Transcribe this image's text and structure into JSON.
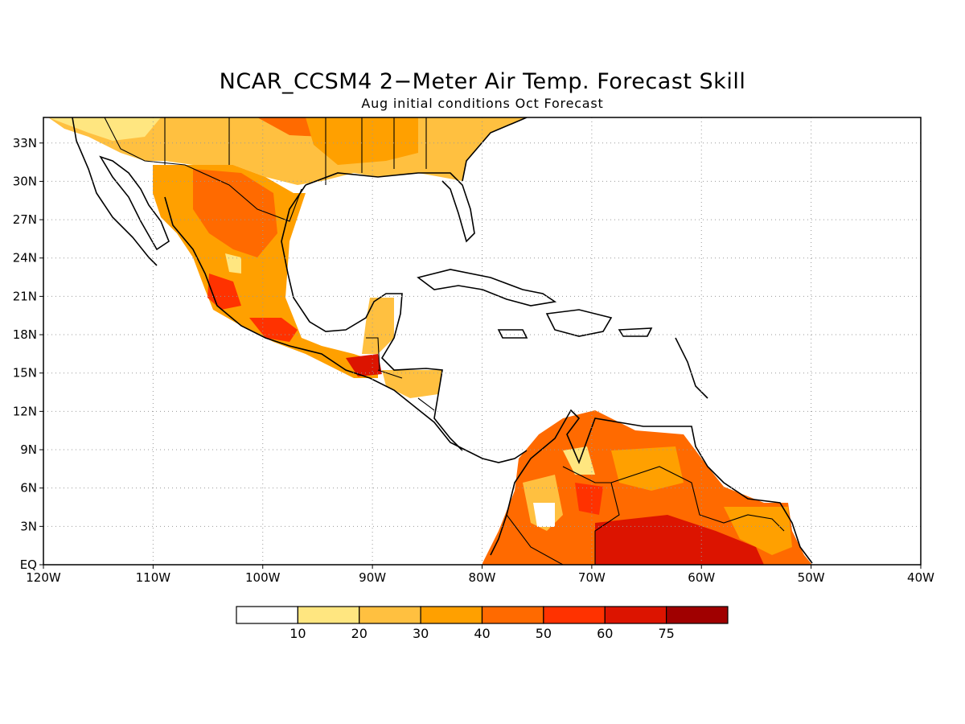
{
  "title": "NCAR_CCSM4 2−Meter Air Temp. Forecast Skill",
  "subtitle": "Aug initial conditions  Oct Forecast",
  "map": {
    "lon_range": [
      -120,
      -40
    ],
    "lat_range": [
      0,
      35
    ],
    "grid": "dotted",
    "x_ticks": [
      {
        "value": -120,
        "label": "120W"
      },
      {
        "value": -110,
        "label": "110W"
      },
      {
        "value": -100,
        "label": "100W"
      },
      {
        "value": -90,
        "label": "90W"
      },
      {
        "value": -80,
        "label": "80W"
      },
      {
        "value": -70,
        "label": "70W"
      },
      {
        "value": -60,
        "label": "60W"
      },
      {
        "value": -50,
        "label": "50W"
      },
      {
        "value": -40,
        "label": "40W"
      }
    ],
    "y_ticks": [
      {
        "value": 0,
        "label": "EQ"
      },
      {
        "value": 3,
        "label": "3N"
      },
      {
        "value": 6,
        "label": "6N"
      },
      {
        "value": 9,
        "label": "9N"
      },
      {
        "value": 12,
        "label": "12N"
      },
      {
        "value": 15,
        "label": "15N"
      },
      {
        "value": 18,
        "label": "18N"
      },
      {
        "value": 21,
        "label": "21N"
      },
      {
        "value": 24,
        "label": "24N"
      },
      {
        "value": 27,
        "label": "27N"
      },
      {
        "value": 30,
        "label": "30N"
      },
      {
        "value": 33,
        "label": "33N"
      }
    ]
  },
  "colorbar": {
    "colors": [
      "#ffffff",
      "#ffe680",
      "#ffc040",
      "#ffa000",
      "#ff6a00",
      "#ff3200",
      "#dc1400",
      "#a00000"
    ],
    "labels": [
      "10",
      "20",
      "30",
      "40",
      "50",
      "60",
      "75"
    ]
  },
  "skill_regions": [
    {
      "region": "United States south",
      "level": 3
    },
    {
      "region": "Northern Mexico",
      "level": 4
    },
    {
      "region": "Southern Mexico coast",
      "level": 5
    },
    {
      "region": "Central America",
      "level": 4
    },
    {
      "region": "Northern South America",
      "level": 5
    },
    {
      "region": "Northern Brazil",
      "level": 6
    }
  ]
}
